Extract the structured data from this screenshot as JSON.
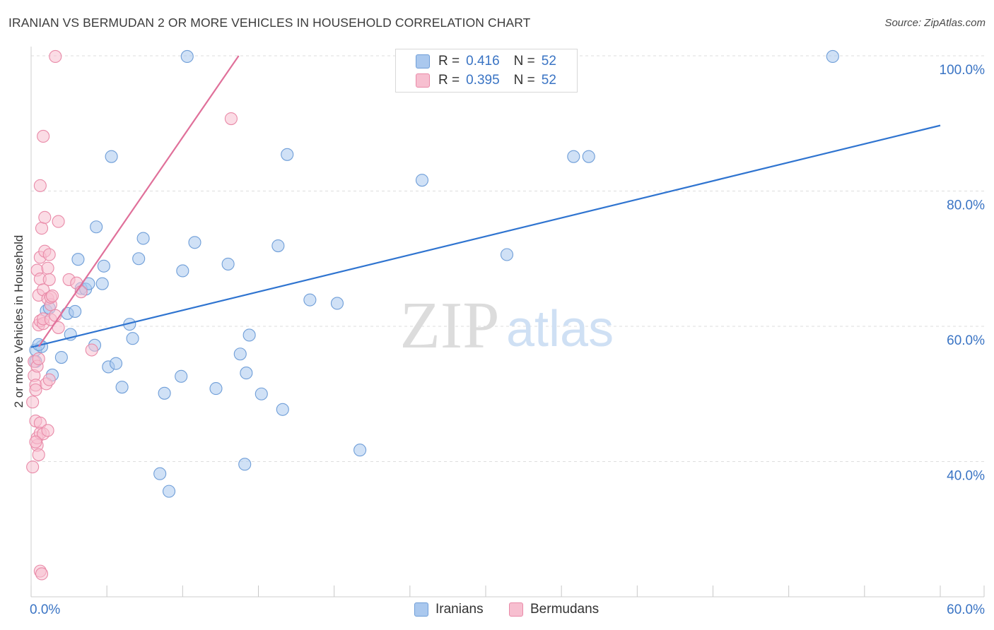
{
  "header": {
    "title": "IRANIAN VS BERMUDAN 2 OR MORE VEHICLES IN HOUSEHOLD CORRELATION CHART",
    "source": "Source: ZipAtlas.com"
  },
  "watermark": {
    "zip": "ZIP",
    "atlas": "atlas"
  },
  "legend_top": {
    "rows": [
      {
        "r_label": "R =",
        "r_value": "0.416",
        "n_label": "N =",
        "n_value": "52"
      },
      {
        "r_label": "R =",
        "r_value": "0.395",
        "n_label": "N =",
        "n_value": "52"
      }
    ]
  },
  "legend_bottom": {
    "iranians": "Iranians",
    "bermudans": "Bermudans"
  },
  "colors": {
    "blue_fill": "#aac8ee",
    "blue_stroke": "#6f9ed8",
    "blue_line": "#2f74d0",
    "pink_fill": "#f7bfd0",
    "pink_stroke": "#e98aa8",
    "pink_line": "#e0709a",
    "tick_text": "#3a74c4",
    "grid": "#dedede"
  },
  "chart_data": {
    "type": "scatter",
    "title": "IRANIAN VS BERMUDAN 2 OR MORE VEHICLES IN HOUSEHOLD CORRELATION CHART",
    "xlabel": "",
    "ylabel": "2 or more Vehicles in Household",
    "xlim": [
      0,
      60
    ],
    "ylim": [
      20,
      100
    ],
    "x_tick_labels": [
      "0.0%",
      "60.0%"
    ],
    "y_ticks": [
      40,
      60,
      80,
      100
    ],
    "y_tick_labels": [
      "40.0%",
      "60.0%",
      "80.0%",
      "100.0%"
    ],
    "grid": true,
    "series": [
      {
        "name": "Iranians",
        "r": 0.416,
        "n": 52,
        "trend": {
          "x": [
            0,
            60
          ],
          "y": [
            56.9,
            89.7
          ]
        },
        "points": [
          {
            "x": 0.3,
            "y": 54.8
          },
          {
            "x": 0.3,
            "y": 56.5
          },
          {
            "x": 0.7,
            "y": 57.0
          },
          {
            "x": 1.0,
            "y": 62.3
          },
          {
            "x": 1.2,
            "y": 62.7
          },
          {
            "x": 1.4,
            "y": 52.8
          },
          {
            "x": 2.0,
            "y": 55.4
          },
          {
            "x": 2.4,
            "y": 61.9
          },
          {
            "x": 2.6,
            "y": 58.8
          },
          {
            "x": 2.9,
            "y": 62.2
          },
          {
            "x": 3.1,
            "y": 69.9
          },
          {
            "x": 3.3,
            "y": 65.6
          },
          {
            "x": 3.6,
            "y": 65.5
          },
          {
            "x": 3.8,
            "y": 66.3
          },
          {
            "x": 4.2,
            "y": 57.2
          },
          {
            "x": 4.3,
            "y": 74.7
          },
          {
            "x": 4.7,
            "y": 66.3
          },
          {
            "x": 4.8,
            "y": 68.9
          },
          {
            "x": 5.1,
            "y": 54.0
          },
          {
            "x": 5.3,
            "y": 85.1
          },
          {
            "x": 5.6,
            "y": 54.5
          },
          {
            "x": 6.0,
            "y": 51.0
          },
          {
            "x": 6.5,
            "y": 60.3
          },
          {
            "x": 6.7,
            "y": 58.2
          },
          {
            "x": 7.1,
            "y": 70.0
          },
          {
            "x": 7.4,
            "y": 73.0
          },
          {
            "x": 8.5,
            "y": 38.2
          },
          {
            "x": 8.8,
            "y": 50.1
          },
          {
            "x": 9.1,
            "y": 35.6
          },
          {
            "x": 9.9,
            "y": 52.6
          },
          {
            "x": 10.0,
            "y": 68.2
          },
          {
            "x": 10.3,
            "y": 99.9
          },
          {
            "x": 10.8,
            "y": 72.4
          },
          {
            "x": 12.2,
            "y": 50.8
          },
          {
            "x": 13.0,
            "y": 69.2
          },
          {
            "x": 13.8,
            "y": 55.9
          },
          {
            "x": 14.1,
            "y": 39.6
          },
          {
            "x": 14.2,
            "y": 53.1
          },
          {
            "x": 14.4,
            "y": 58.7
          },
          {
            "x": 15.2,
            "y": 50.0
          },
          {
            "x": 16.3,
            "y": 71.9
          },
          {
            "x": 16.6,
            "y": 47.7
          },
          {
            "x": 16.9,
            "y": 85.4
          },
          {
            "x": 18.4,
            "y": 63.9
          },
          {
            "x": 20.2,
            "y": 63.4
          },
          {
            "x": 21.7,
            "y": 41.7
          },
          {
            "x": 25.8,
            "y": 81.6
          },
          {
            "x": 31.4,
            "y": 70.6
          },
          {
            "x": 35.8,
            "y": 85.1
          },
          {
            "x": 36.8,
            "y": 85.1
          },
          {
            "x": 52.9,
            "y": 99.9
          },
          {
            "x": 0.5,
            "y": 57.3
          }
        ]
      },
      {
        "name": "Bermudans",
        "r": 0.395,
        "n": 52,
        "trend": {
          "x": [
            0.5,
            13.7
          ],
          "y": [
            57.0,
            100.0
          ]
        },
        "points": [
          {
            "x": 0.1,
            "y": 48.8
          },
          {
            "x": 0.1,
            "y": 39.2
          },
          {
            "x": 0.2,
            "y": 52.7
          },
          {
            "x": 0.2,
            "y": 54.8
          },
          {
            "x": 0.3,
            "y": 51.3
          },
          {
            "x": 0.3,
            "y": 50.6
          },
          {
            "x": 0.3,
            "y": 46.0
          },
          {
            "x": 0.4,
            "y": 68.3
          },
          {
            "x": 0.4,
            "y": 54.1
          },
          {
            "x": 0.4,
            "y": 42.4
          },
          {
            "x": 0.4,
            "y": 43.5
          },
          {
            "x": 0.5,
            "y": 64.6
          },
          {
            "x": 0.5,
            "y": 60.2
          },
          {
            "x": 0.5,
            "y": 55.2
          },
          {
            "x": 0.5,
            "y": 41.0
          },
          {
            "x": 0.6,
            "y": 70.2
          },
          {
            "x": 0.6,
            "y": 80.8
          },
          {
            "x": 0.6,
            "y": 67.0
          },
          {
            "x": 0.6,
            "y": 60.8
          },
          {
            "x": 0.6,
            "y": 45.7
          },
          {
            "x": 0.6,
            "y": 44.2
          },
          {
            "x": 0.6,
            "y": 23.8
          },
          {
            "x": 0.7,
            "y": 74.5
          },
          {
            "x": 0.7,
            "y": 23.4
          },
          {
            "x": 0.8,
            "y": 65.4
          },
          {
            "x": 0.8,
            "y": 60.4
          },
          {
            "x": 0.8,
            "y": 44.1
          },
          {
            "x": 0.8,
            "y": 88.1
          },
          {
            "x": 0.8,
            "y": 61.1
          },
          {
            "x": 0.9,
            "y": 76.1
          },
          {
            "x": 0.9,
            "y": 71.1
          },
          {
            "x": 1.0,
            "y": 51.5
          },
          {
            "x": 1.1,
            "y": 68.6
          },
          {
            "x": 1.1,
            "y": 64.1
          },
          {
            "x": 1.1,
            "y": 44.6
          },
          {
            "x": 1.2,
            "y": 70.6
          },
          {
            "x": 1.2,
            "y": 66.9
          },
          {
            "x": 1.2,
            "y": 52.1
          },
          {
            "x": 1.3,
            "y": 63.2
          },
          {
            "x": 1.3,
            "y": 61.0
          },
          {
            "x": 1.3,
            "y": 64.3
          },
          {
            "x": 1.4,
            "y": 64.5
          },
          {
            "x": 1.6,
            "y": 61.6
          },
          {
            "x": 1.8,
            "y": 59.8
          },
          {
            "x": 1.8,
            "y": 75.5
          },
          {
            "x": 2.5,
            "y": 66.9
          },
          {
            "x": 3.0,
            "y": 66.4
          },
          {
            "x": 3.3,
            "y": 65.1
          },
          {
            "x": 4.0,
            "y": 56.5
          },
          {
            "x": 1.6,
            "y": 99.9
          },
          {
            "x": 13.2,
            "y": 90.7
          },
          {
            "x": 0.3,
            "y": 42.9
          }
        ]
      }
    ]
  }
}
